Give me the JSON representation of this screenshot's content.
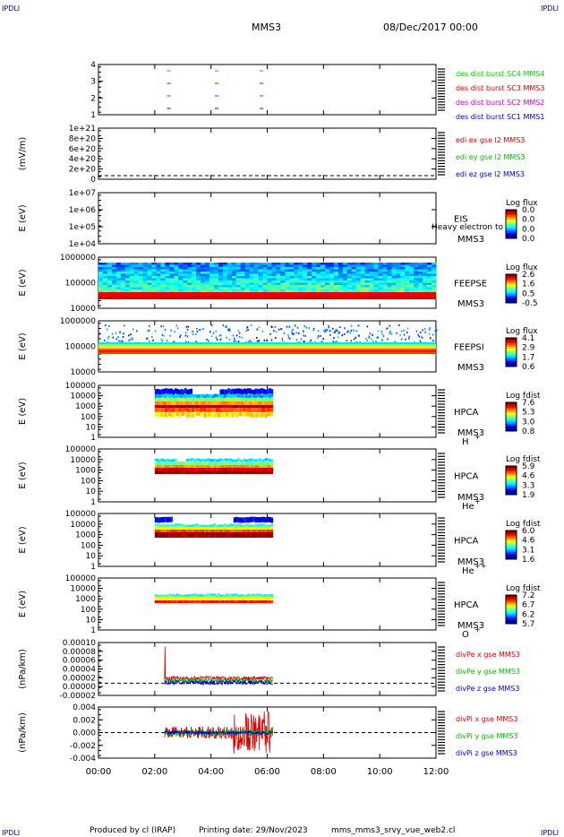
{
  "header": {
    "corner_tl": "IPDLI",
    "corner_tr": "IPDLI",
    "corner_bl": "IPDLI",
    "corner_br": "IPDLI",
    "spacecraft": "MMS3",
    "date": "08/Dec/2017 00:00"
  },
  "footer": {
    "produced": "Produced by cl (IRAP)",
    "printing": "Printing date: 29/Nov/2023",
    "file": "mms_mms3_srvy_vue_web2.cl"
  },
  "time_axis": {
    "ticks": [
      "00:00",
      "02:00",
      "04:00",
      "06:00",
      "08:00",
      "10:00",
      "12:00"
    ],
    "range_hours": [
      0,
      12
    ]
  },
  "chart_data": [
    {
      "type": "scatter",
      "panel": "burst",
      "yticks": [
        "4",
        "3",
        "2",
        "1"
      ],
      "ylim": [
        0.5,
        4.5
      ],
      "series": [
        {
          "name": "des dist burst SC1 MMS1",
          "color": "#0000cc",
          "y": 1,
          "x_hours": [
            2.5,
            4.2,
            5.8
          ]
        },
        {
          "name": "des dist burst SC2 MMS2",
          "color": "#cc00cc",
          "y": 2,
          "x_hours": [
            2.5,
            4.2,
            5.8
          ]
        },
        {
          "name": "des dist burst SC3 MMS3",
          "color": "#dd0000",
          "y": 3,
          "x_hours": [
            2.5,
            4.2,
            5.8
          ]
        },
        {
          "name": "des dist burst SC4 MMS4",
          "color": "#00cc00",
          "y": 4,
          "x_hours": [
            2.5,
            4.2,
            5.8
          ]
        }
      ]
    },
    {
      "type": "line",
      "panel": "edi",
      "ylabel": "(mV/m)",
      "yticks": [
        "1e+21",
        "8e+20",
        "6e+20",
        "4e+20",
        "2e+20",
        "0"
      ],
      "series": [
        {
          "name": "edi ex gse l2 MMS3",
          "color": "#dd0000"
        },
        {
          "name": "edi ey gse l2 MMS3",
          "color": "#00bb00"
        },
        {
          "name": "edi ez gse l2 MMS3",
          "color": "#0000cc"
        }
      ]
    },
    {
      "type": "heatmap",
      "panel": "eis",
      "ylabel": "E (eV)",
      "yticks": [
        "1e+07",
        "1e+06",
        "1e+05",
        "1e+04"
      ],
      "instrument": "EIS",
      "spacecraft": "MMS3",
      "overlay_text": "Heavy electron to",
      "colorbar": {
        "title": "Log flux",
        "ticks": [
          "0.0",
          "0.0",
          "0.0",
          "0.0"
        ]
      }
    },
    {
      "type": "heatmap",
      "panel": "feepse",
      "ylabel": "E (eV)",
      "yticks": [
        "1000000",
        "100000",
        "10000"
      ],
      "instrument": "FEEPSE",
      "spacecraft": "MMS3",
      "colorbar": {
        "title": "Log flux",
        "ticks": [
          "2.6",
          "1.6",
          "0.5",
          "-0.5"
        ]
      },
      "time_range_hours": [
        0,
        12
      ]
    },
    {
      "type": "heatmap",
      "panel": "feepsi",
      "ylabel": "E (eV)",
      "yticks": [
        "1000000",
        "100000",
        "10000"
      ],
      "instrument": "FEEPSI",
      "spacecraft": "MMS3",
      "colorbar": {
        "title": "Log flux",
        "ticks": [
          "4.1",
          "2.9",
          "1.7",
          "0.6"
        ]
      },
      "time_range_hours": [
        0,
        12
      ]
    },
    {
      "type": "heatmap",
      "panel": "hpca_h",
      "ylabel": "E (eV)",
      "yticks": [
        "100000",
        "10000",
        "1000",
        "100",
        "10",
        "1"
      ],
      "instrument": "HPCA",
      "spacecraft": "MMS3",
      "species": "H",
      "species_sup": "+",
      "colorbar": {
        "title": "Log fdist",
        "ticks": [
          "7.6",
          "5.3",
          "3.0",
          "0.8"
        ]
      },
      "time_range_hours": [
        2.0,
        6.2
      ]
    },
    {
      "type": "heatmap",
      "panel": "hpca_he",
      "ylabel": "E (eV)",
      "yticks": [
        "100000",
        "10000",
        "1000",
        "100",
        "10",
        "1"
      ],
      "instrument": "HPCA",
      "spacecraft": "MMS3",
      "species": "He",
      "species_sup": "+",
      "colorbar": {
        "title": "Log fdist",
        "ticks": [
          "5.9",
          "4.6",
          "3.3",
          "1.9"
        ]
      },
      "time_range_hours": [
        2.0,
        6.2
      ]
    },
    {
      "type": "heatmap",
      "panel": "hpca_hepp",
      "ylabel": "E (eV)",
      "yticks": [
        "100000",
        "10000",
        "1000",
        "100",
        "10",
        "1"
      ],
      "instrument": "HPCA",
      "spacecraft": "MMS3",
      "species": "He",
      "species_sup": "++",
      "colorbar": {
        "title": "Log fdist",
        "ticks": [
          "6.0",
          "4.6",
          "3.1",
          "1.6"
        ]
      },
      "time_range_hours": [
        2.0,
        6.2
      ]
    },
    {
      "type": "heatmap",
      "panel": "hpca_o",
      "ylabel": "E (eV)",
      "yticks": [
        "100000",
        "10000",
        "1000",
        "100",
        "10",
        "1"
      ],
      "instrument": "HPCA",
      "spacecraft": "MMS3",
      "species": "O",
      "species_sup": "+",
      "colorbar": {
        "title": "Log fdist",
        "ticks": [
          "7.2",
          "6.7",
          "6.2",
          "5.7"
        ]
      },
      "time_range_hours": [
        2.0,
        6.2
      ]
    },
    {
      "type": "line",
      "panel": "divpe",
      "ylabel": "(nPa/km)",
      "yticks": [
        "0.00010",
        "0.00008",
        "0.00006",
        "0.00004",
        "0.00002",
        "0.00000",
        "-0.00002"
      ],
      "ylim": [
        -3e-05,
        0.0001
      ],
      "time_range_hours": [
        2.35,
        6.2
      ],
      "series": [
        {
          "name": "divPe x gse MMS3",
          "color": "#dd0000"
        },
        {
          "name": "divPe y gse MMS3",
          "color": "#00bb00"
        },
        {
          "name": "divPe z gse MMS3",
          "color": "#0000cc"
        }
      ]
    },
    {
      "type": "line",
      "panel": "divpi",
      "ylabel": "(nPa/km)",
      "yticks": [
        "0.004",
        "0.002",
        "0.000",
        "-0.002",
        "-0.004"
      ],
      "ylim": [
        -0.0045,
        0.0045
      ],
      "time_range_hours": [
        2.35,
        6.2
      ],
      "series": [
        {
          "name": "divPi x gse MMS3",
          "color": "#dd0000"
        },
        {
          "name": "divPi y gse MMS3",
          "color": "#00bb00"
        },
        {
          "name": "divPi z gse MMS3",
          "color": "#0000cc"
        }
      ]
    }
  ]
}
